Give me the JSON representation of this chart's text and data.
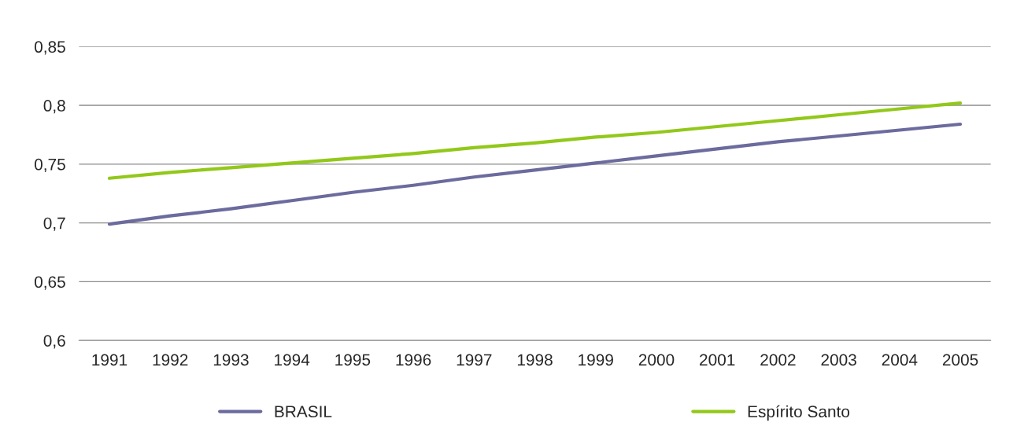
{
  "chart_data": {
    "type": "line",
    "categories": [
      "1991",
      "1992",
      "1993",
      "1994",
      "1995",
      "1996",
      "1997",
      "1998",
      "1999",
      "2000",
      "2001",
      "2002",
      "2003",
      "2004",
      "2005"
    ],
    "series": [
      {
        "name": "BRASIL",
        "color": "#6b6b9e",
        "values": [
          0.699,
          0.706,
          0.712,
          0.719,
          0.726,
          0.732,
          0.739,
          0.745,
          0.751,
          0.757,
          0.763,
          0.769,
          0.774,
          0.779,
          0.784
        ]
      },
      {
        "name": "Espírito Santo",
        "color": "#92c81a",
        "values": [
          0.738,
          0.743,
          0.747,
          0.751,
          0.755,
          0.759,
          0.764,
          0.768,
          0.773,
          0.777,
          0.782,
          0.787,
          0.792,
          0.797,
          0.802
        ]
      }
    ],
    "ylim": [
      0.6,
      0.85
    ],
    "yticks": [
      {
        "value": 0.6,
        "label": "0,6"
      },
      {
        "value": 0.65,
        "label": "0,65"
      },
      {
        "value": 0.7,
        "label": "0,7"
      },
      {
        "value": 0.75,
        "label": "0,75"
      },
      {
        "value": 0.8,
        "label": "0,8"
      },
      {
        "value": 0.85,
        "label": "0,85"
      }
    ],
    "grid": "y",
    "legend": "bottom",
    "marker": "none",
    "line_style": "solid"
  }
}
